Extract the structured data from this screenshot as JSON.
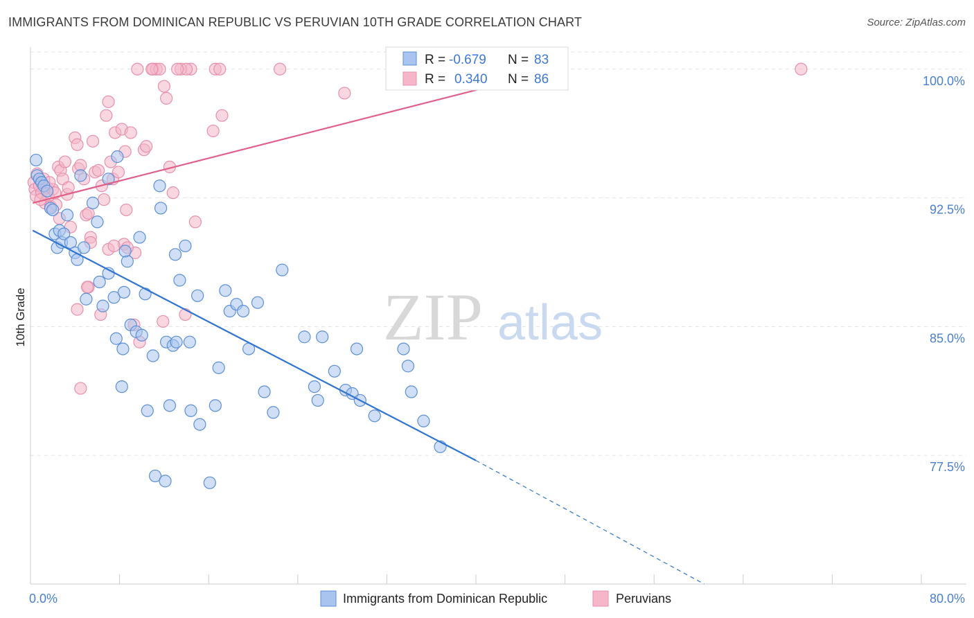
{
  "header": {
    "title": "IMMIGRANTS FROM DOMINICAN REPUBLIC VS PERUVIAN 10TH GRADE CORRELATION CHART",
    "source": "Source: ZipAtlas.com"
  },
  "watermark": {
    "zip": "ZIP",
    "atlas": "atlas"
  },
  "colors": {
    "blue_fill": "#a9c5ef",
    "blue_stroke": "#5b8fd6",
    "blue_line": "#2f74d0",
    "pink_fill": "#f4b6c8",
    "pink_stroke": "#e790ac",
    "pink_line": "#e0608a",
    "grid": "#e3e3e3",
    "tick_text": "#4a7fd0"
  },
  "stats_box": {
    "rows": [
      {
        "r_label": "R =",
        "r_value": "-0.679",
        "n_label": "N =",
        "n_value": "83",
        "series": "blue"
      },
      {
        "r_label": "R =",
        "r_value": "0.340",
        "n_label": "N =",
        "n_value": "86",
        "series": "pink"
      }
    ]
  },
  "chart_data": {
    "type": "scatter",
    "title": "IMMIGRANTS FROM DOMINICAN REPUBLIC VS PERUVIAN 10TH GRADE CORRELATION CHART",
    "xlabel": "",
    "ylabel": "10th Grade",
    "xlim": [
      0,
      80
    ],
    "ylim": [
      70.0,
      101.0
    ],
    "x_tick_labels": [
      "0.0%",
      "80.0%"
    ],
    "y_ticks": [
      77.5,
      85.0,
      92.5,
      100.0
    ],
    "y_tick_labels": [
      "77.5%",
      "85.0%",
      "92.5%",
      "100.0%"
    ],
    "grid": true,
    "legend_position": "bottom",
    "series": [
      {
        "name": "Immigrants from Dominican Republic",
        "color": "blue",
        "r": -0.679,
        "n": 83,
        "trend": {
          "x0": 0.2,
          "y0": 90.6,
          "x1": 40.0,
          "y1": 77.2,
          "dash_to_x": 60.5,
          "dash_to_y": 70.0
        },
        "points": [
          [
            0.5,
            94.7
          ],
          [
            0.6,
            93.8
          ],
          [
            0.8,
            93.6
          ],
          [
            1.0,
            93.4
          ],
          [
            1.2,
            93.2
          ],
          [
            1.5,
            92.9
          ],
          [
            1.8,
            91.9
          ],
          [
            2.0,
            91.8
          ],
          [
            2.2,
            90.4
          ],
          [
            2.4,
            89.6
          ],
          [
            2.6,
            90.6
          ],
          [
            2.8,
            89.9
          ],
          [
            3.0,
            90.4
          ],
          [
            3.3,
            91.5
          ],
          [
            3.6,
            89.9
          ],
          [
            4.0,
            89.3
          ],
          [
            4.5,
            93.8
          ],
          [
            4.8,
            89.6
          ],
          [
            4.2,
            88.9
          ],
          [
            5.0,
            86.6
          ],
          [
            5.6,
            92.2
          ],
          [
            6.0,
            91.1
          ],
          [
            6.2,
            87.6
          ],
          [
            6.5,
            86.2
          ],
          [
            7.0,
            93.6
          ],
          [
            7.0,
            88.1
          ],
          [
            7.5,
            86.7
          ],
          [
            7.8,
            94.9
          ],
          [
            7.7,
            84.3
          ],
          [
            8.3,
            83.7
          ],
          [
            8.4,
            87.0
          ],
          [
            8.7,
            88.8
          ],
          [
            9.0,
            85.1
          ],
          [
            8.2,
            81.5
          ],
          [
            9.5,
            84.7
          ],
          [
            9.8,
            90.2
          ],
          [
            10.0,
            84.5
          ],
          [
            10.3,
            86.9
          ],
          [
            10.5,
            80.1
          ],
          [
            11.0,
            83.3
          ],
          [
            11.6,
            93.2
          ],
          [
            11.7,
            91.9
          ],
          [
            12.2,
            84.1
          ],
          [
            12.5,
            80.4
          ],
          [
            12.8,
            83.9
          ],
          [
            13.1,
            84.1
          ],
          [
            13.4,
            87.7
          ],
          [
            13.9,
            89.7
          ],
          [
            14.3,
            84.1
          ],
          [
            14.4,
            80.1
          ],
          [
            15.0,
            86.8
          ],
          [
            15.2,
            79.3
          ],
          [
            16.6,
            80.4
          ],
          [
            16.9,
            82.6
          ],
          [
            17.5,
            87.1
          ],
          [
            17.9,
            85.9
          ],
          [
            18.5,
            86.3
          ],
          [
            19.1,
            85.9
          ],
          [
            19.6,
            83.7
          ],
          [
            20.4,
            86.4
          ],
          [
            21.0,
            81.2
          ],
          [
            21.8,
            80.0
          ],
          [
            22.6,
            88.3
          ],
          [
            24.6,
            84.4
          ],
          [
            25.5,
            81.5
          ],
          [
            25.8,
            80.7
          ],
          [
            26.2,
            84.4
          ],
          [
            27.3,
            82.4
          ],
          [
            28.3,
            81.3
          ],
          [
            28.9,
            81.1
          ],
          [
            29.3,
            83.7
          ],
          [
            29.6,
            80.7
          ],
          [
            30.9,
            79.8
          ],
          [
            33.5,
            83.7
          ],
          [
            33.9,
            82.7
          ],
          [
            34.2,
            81.2
          ],
          [
            35.3,
            79.5
          ],
          [
            36.8,
            78.0
          ],
          [
            11.2,
            76.3
          ],
          [
            12.1,
            76.0
          ],
          [
            16.1,
            75.9
          ],
          [
            8.5,
            89.4
          ],
          [
            13.0,
            89.2
          ]
        ]
      },
      {
        "name": "Peruvians",
        "color": "pink",
        "r": 0.34,
        "n": 86,
        "trend": {
          "x0": 0.2,
          "y0": 92.2,
          "x1": 48.0,
          "y1": 100.1
        },
        "points": [
          [
            0.3,
            93.4
          ],
          [
            0.4,
            93.0
          ],
          [
            0.5,
            92.6
          ],
          [
            0.6,
            93.9
          ],
          [
            0.8,
            93.2
          ],
          [
            1.0,
            92.8
          ],
          [
            1.2,
            93.6
          ],
          [
            1.3,
            92.2
          ],
          [
            1.5,
            93.1
          ],
          [
            1.6,
            92.6
          ],
          [
            1.8,
            92.0
          ],
          [
            2.0,
            93.0
          ],
          [
            2.2,
            92.8
          ],
          [
            2.5,
            94.3
          ],
          [
            2.7,
            94.1
          ],
          [
            2.9,
            93.6
          ],
          [
            3.1,
            94.6
          ],
          [
            3.3,
            92.7
          ],
          [
            2.6,
            91.3
          ],
          [
            3.6,
            90.8
          ],
          [
            4.0,
            96.0
          ],
          [
            4.2,
            95.6
          ],
          [
            4.3,
            94.2
          ],
          [
            4.5,
            94.4
          ],
          [
            4.8,
            93.6
          ],
          [
            5.0,
            91.5
          ],
          [
            5.2,
            91.6
          ],
          [
            5.4,
            90.2
          ],
          [
            5.2,
            87.3
          ],
          [
            5.6,
            95.8
          ],
          [
            5.8,
            94.0
          ],
          [
            6.1,
            94.1
          ],
          [
            6.4,
            93.2
          ],
          [
            6.6,
            92.4
          ],
          [
            6.8,
            97.3
          ],
          [
            7.0,
            98.1
          ],
          [
            7.2,
            94.6
          ],
          [
            7.4,
            93.6
          ],
          [
            7.6,
            96.3
          ],
          [
            7.9,
            94.0
          ],
          [
            8.2,
            96.5
          ],
          [
            8.5,
            95.2
          ],
          [
            8.6,
            91.8
          ],
          [
            8.4,
            89.8
          ],
          [
            9.0,
            96.3
          ],
          [
            9.4,
            89.3
          ],
          [
            9.8,
            84.1
          ],
          [
            10.2,
            95.3
          ],
          [
            10.4,
            95.5
          ],
          [
            11.0,
            100.0
          ],
          [
            11.3,
            100.0
          ],
          [
            11.6,
            100.0
          ],
          [
            12.0,
            99.0
          ],
          [
            12.2,
            98.3
          ],
          [
            12.5,
            94.3
          ],
          [
            12.8,
            92.8
          ],
          [
            14.4,
            100.0
          ],
          [
            13.5,
            100.0
          ],
          [
            14.0,
            100.0
          ],
          [
            14.8,
            91.1
          ],
          [
            16.4,
            96.4
          ],
          [
            16.6,
            100.0
          ],
          [
            17.2,
            97.3
          ],
          [
            17.0,
            100.0
          ],
          [
            22.4,
            100.0
          ],
          [
            28.2,
            98.6
          ],
          [
            34.2,
            100.0
          ],
          [
            69.2,
            100.0
          ],
          [
            9.3,
            85.1
          ],
          [
            11.9,
            85.3
          ],
          [
            13.9,
            85.7
          ],
          [
            6.3,
            85.7
          ],
          [
            5.1,
            87.3
          ],
          [
            4.2,
            86.0
          ],
          [
            4.5,
            81.4
          ],
          [
            8.7,
            89.6
          ],
          [
            7.0,
            89.5
          ],
          [
            5.4,
            89.9
          ],
          [
            1.7,
            93.4
          ],
          [
            0.9,
            92.4
          ],
          [
            2.3,
            92.1
          ],
          [
            3.4,
            93.1
          ],
          [
            9.6,
            100.0
          ],
          [
            10.9,
            100.0
          ],
          [
            13.2,
            100.0
          ],
          [
            7.5,
            89.7
          ]
        ]
      }
    ]
  },
  "legend": {
    "items": [
      {
        "label": "Immigrants from Dominican Republic",
        "color": "blue"
      },
      {
        "label": "Peruvians",
        "color": "pink"
      }
    ]
  }
}
